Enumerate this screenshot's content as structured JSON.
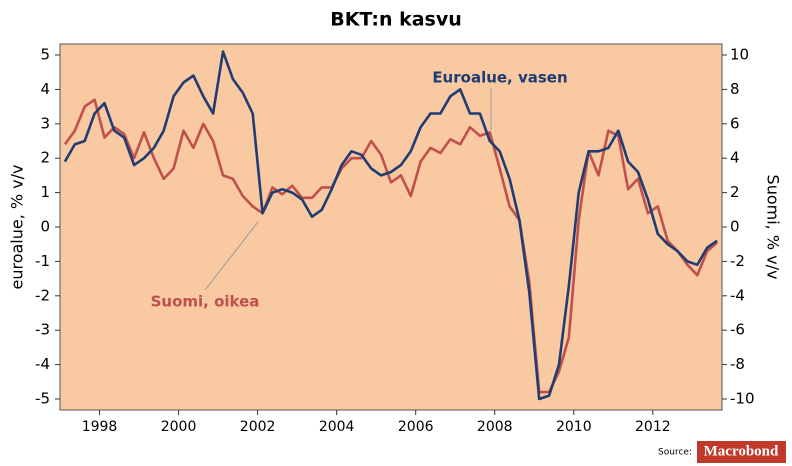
{
  "chart_data": {
    "type": "line",
    "title": "BKT:n kasvu",
    "ylabel": "euroalue, % v/v",
    "y2label": "Suomi, % v/v",
    "x": [
      1997.125,
      1997.375,
      1997.625,
      1997.875,
      1998.125,
      1998.375,
      1998.625,
      1998.875,
      1999.125,
      1999.375,
      1999.625,
      1999.875,
      2000.125,
      2000.375,
      2000.625,
      2000.875,
      2001.125,
      2001.375,
      2001.625,
      2001.875,
      2002.125,
      2002.375,
      2002.625,
      2002.875,
      2003.125,
      2003.375,
      2003.625,
      2003.875,
      2004.125,
      2004.375,
      2004.625,
      2004.875,
      2005.125,
      2005.375,
      2005.625,
      2005.875,
      2006.125,
      2006.375,
      2006.625,
      2006.875,
      2007.125,
      2007.375,
      2007.625,
      2007.875,
      2008.125,
      2008.375,
      2008.625,
      2008.875,
      2009.125,
      2009.375,
      2009.625,
      2009.875,
      2010.125,
      2010.375,
      2010.625,
      2010.875,
      2011.125,
      2011.375,
      2011.625,
      2011.875,
      2012.125,
      2012.375,
      2012.625,
      2012.875,
      2013.125,
      2013.375,
      2013.625
    ],
    "xlim": [
      1997.0,
      2013.75
    ],
    "xticks": [
      1998,
      2000,
      2002,
      2004,
      2006,
      2008,
      2010,
      2012
    ],
    "ylim": [
      -5.32,
      5.32
    ],
    "yticks": [
      -5,
      -4,
      -3,
      -2,
      -1,
      0,
      1,
      2,
      3,
      4,
      5
    ],
    "y2lim": [
      -10.64,
      10.64
    ],
    "y2ticks": [
      -10,
      -8,
      -6,
      -4,
      -2,
      0,
      2,
      4,
      6,
      8,
      10
    ],
    "series": [
      {
        "name": "Euroalue, vasen",
        "color": "#1f3c73",
        "values": [
          1.9,
          2.4,
          2.5,
          3.3,
          3.6,
          2.8,
          2.6,
          1.8,
          2.0,
          2.3,
          2.8,
          3.8,
          4.2,
          4.4,
          3.8,
          3.3,
          5.1,
          4.3,
          3.9,
          3.3,
          0.4,
          1.0,
          1.1,
          1.0,
          0.8,
          0.3,
          0.5,
          1.1,
          1.8,
          2.2,
          2.1,
          1.7,
          1.5,
          1.6,
          1.8,
          2.2,
          2.9,
          3.3,
          3.3,
          3.8,
          4.0,
          3.3,
          3.3,
          2.5,
          2.2,
          1.4,
          0.2,
          -1.9,
          -5.0,
          -4.9,
          -4.0,
          -1.7,
          1.0,
          2.2,
          2.2,
          2.3,
          2.8,
          1.9,
          1.6,
          0.8,
          -0.2,
          -0.5,
          -0.7,
          -1.0,
          -1.1,
          -0.6,
          -0.4
        ]
      },
      {
        "name": "Suomi, oikea",
        "color": "#c0504d",
        "axis": "y2",
        "values": [
          4.8,
          5.6,
          7.0,
          7.4,
          5.2,
          5.8,
          5.4,
          4.0,
          5.5,
          4.0,
          2.8,
          3.4,
          5.6,
          4.6,
          6.0,
          5.0,
          3.0,
          2.8,
          1.8,
          1.2,
          0.8,
          2.3,
          1.9,
          2.4,
          1.7,
          1.7,
          2.3,
          2.3,
          3.4,
          4.0,
          4.0,
          5.0,
          4.2,
          2.6,
          3.0,
          1.8,
          3.8,
          4.6,
          4.3,
          5.1,
          4.8,
          5.8,
          5.3,
          5.5,
          3.4,
          1.2,
          0.4,
          -3.2,
          -9.6,
          -9.6,
          -8.4,
          -6.4,
          0.4,
          4.4,
          3.0,
          5.6,
          5.3,
          2.2,
          2.8,
          0.8,
          1.2,
          -0.8,
          -1.4,
          -2.2,
          -2.8,
          -1.4,
          -0.9
        ]
      }
    ],
    "source": "Source:",
    "logo": "Macrobond"
  }
}
